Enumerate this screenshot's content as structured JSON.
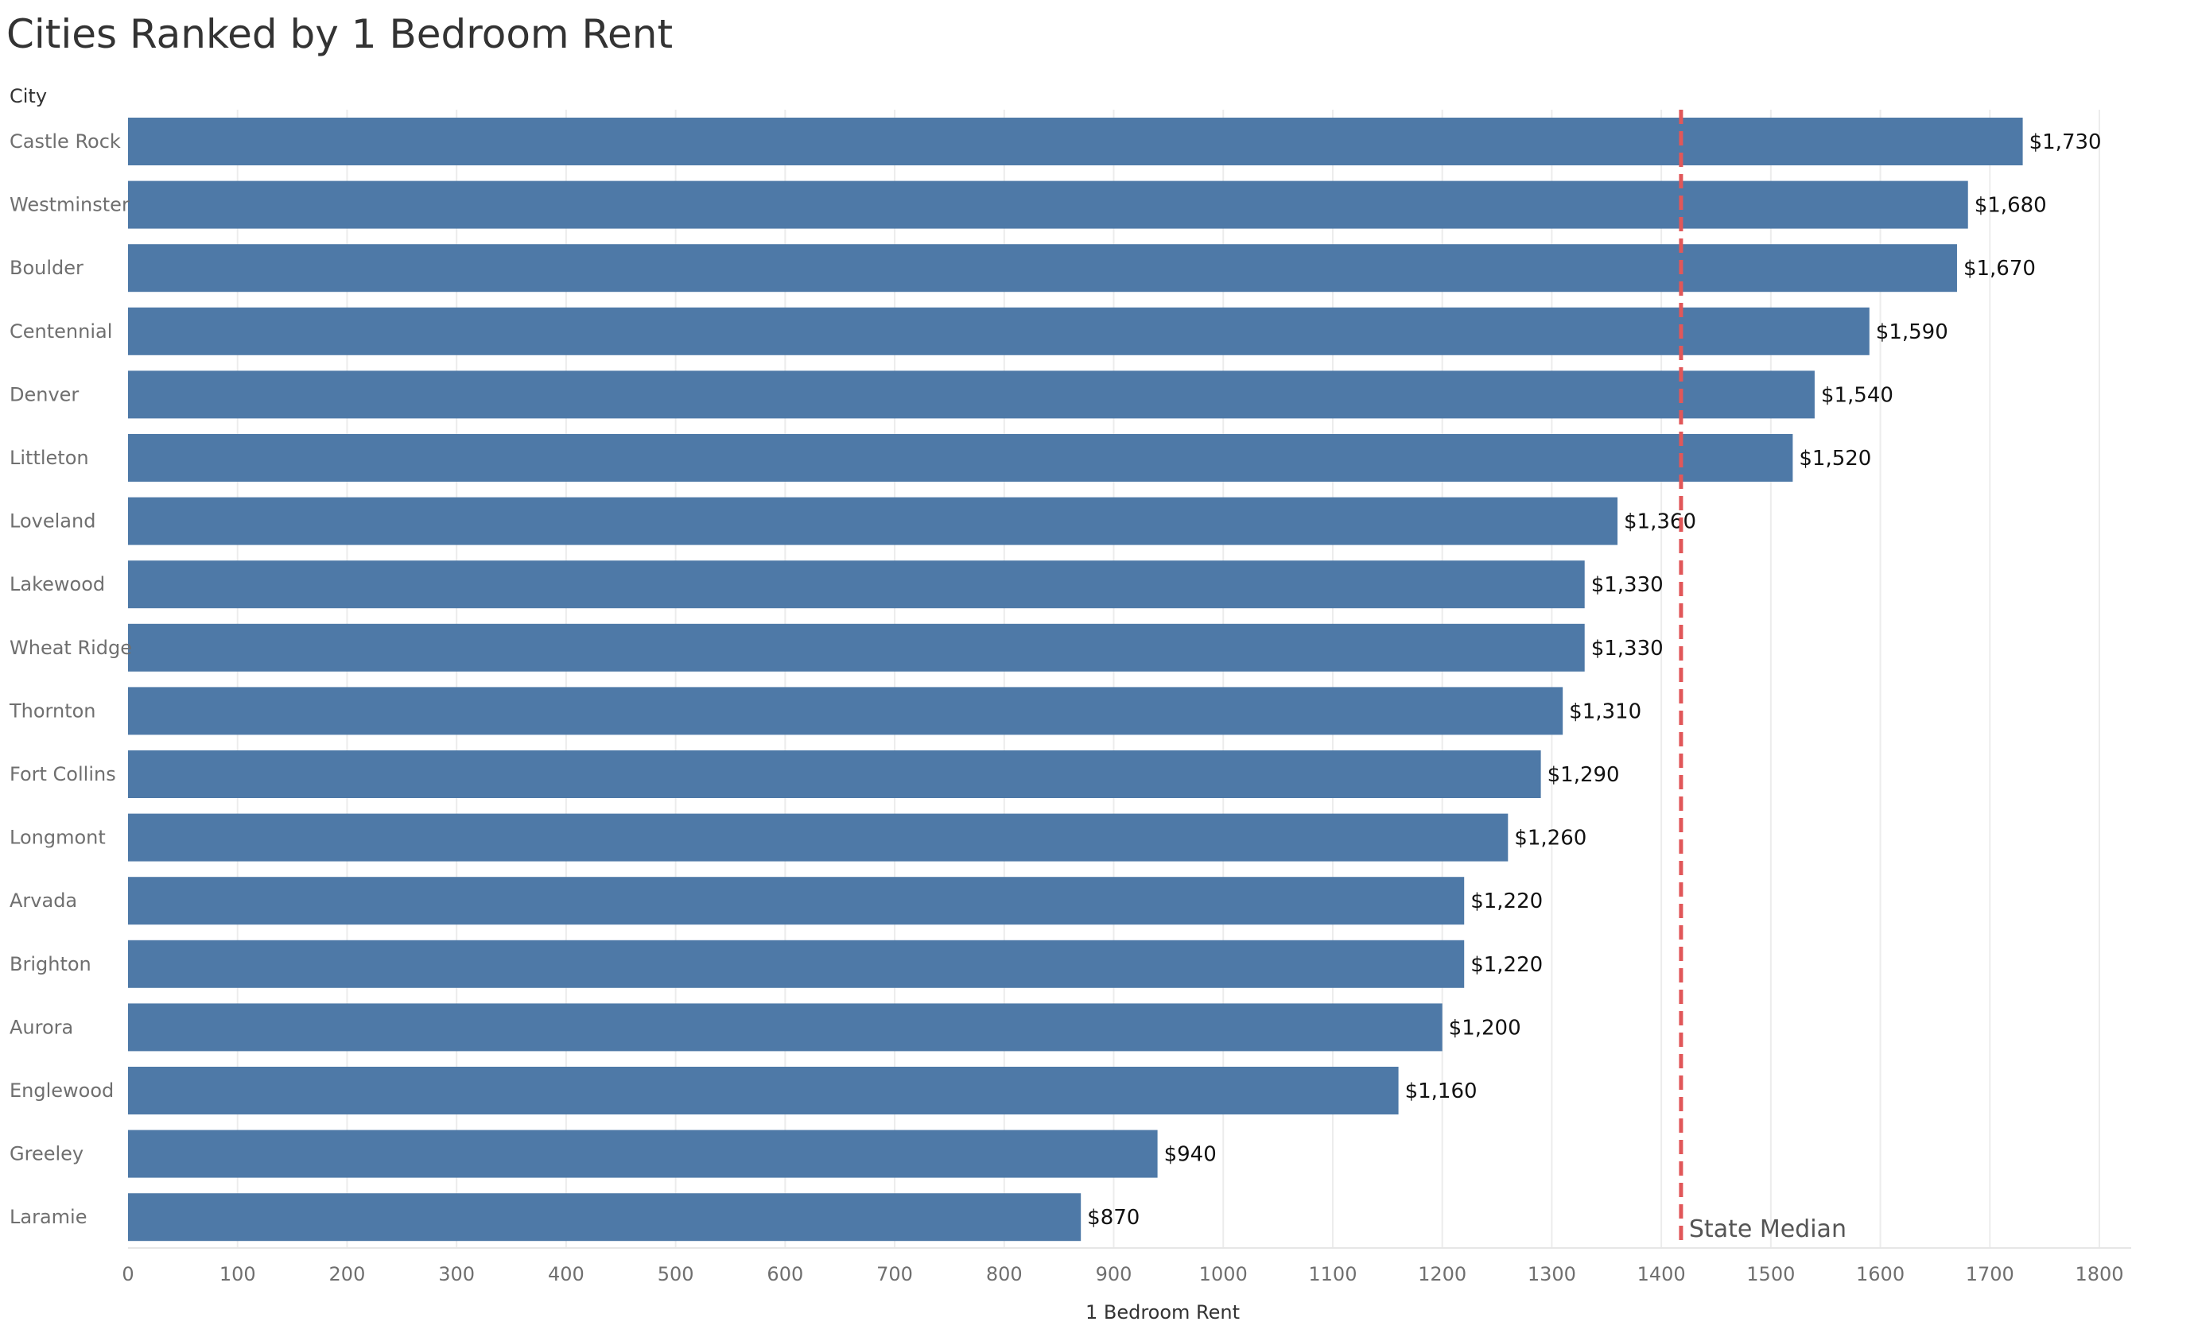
{
  "title": "Cities Ranked by 1 Bedroom Rent",
  "chart_data": {
    "type": "bar",
    "orientation": "horizontal",
    "title": "Cities Ranked by 1 Bedroom Rent",
    "ylabel": "City",
    "xlabel": "1 Bedroom Rent",
    "categories": [
      "Castle Rock",
      "Westminster",
      "Boulder",
      "Centennial",
      "Denver",
      "Littleton",
      "Loveland",
      "Lakewood",
      "Wheat Ridge",
      "Thornton",
      "Fort Collins",
      "Longmont",
      "Arvada",
      "Brighton",
      "Aurora",
      "Englewood",
      "Greeley",
      "Laramie"
    ],
    "values": [
      1730,
      1680,
      1670,
      1590,
      1540,
      1520,
      1360,
      1330,
      1330,
      1310,
      1290,
      1260,
      1220,
      1220,
      1200,
      1160,
      940,
      870
    ],
    "value_labels": [
      "$1,730",
      "$1,680",
      "$1,670",
      "$1,590",
      "$1,540",
      "$1,520",
      "$1,360",
      "$1,330",
      "$1,330",
      "$1,310",
      "$1,290",
      "$1,260",
      "$1,220",
      "$1,220",
      "$1,200",
      "$1,160",
      "$940",
      "$870"
    ],
    "xlim": [
      0,
      1800
    ],
    "x_ticks": [
      0,
      100,
      200,
      300,
      400,
      500,
      600,
      700,
      800,
      900,
      1000,
      1100,
      1200,
      1300,
      1400,
      1500,
      1600,
      1700,
      1800
    ],
    "grid": true,
    "reference_line": {
      "label": "State Median",
      "value": 1418,
      "color": "#e15759",
      "style": "dashed"
    },
    "colors": {
      "bar": "#4e79a7",
      "grid": "#ececec"
    }
  }
}
